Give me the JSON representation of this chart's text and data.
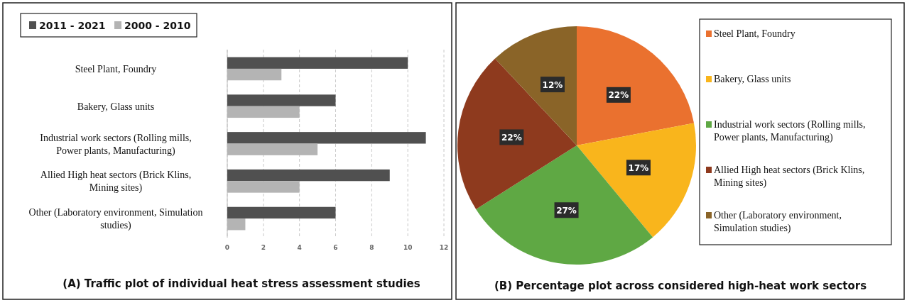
{
  "chart_data": [
    {
      "type": "bar",
      "orientation": "horizontal",
      "title": "(A) Traffic plot of individual heat stress assessment studies",
      "categories": [
        "Steel Plant, Foundry",
        "Bakery, Glass units",
        "Industrial work sectors (Rolling mills, Power plants, Manufacturing)",
        "Allied High heat sectors (Brick Klins, Mining sites)",
        "Other (Laboratory environment, Simulation studies)"
      ],
      "series": [
        {
          "name": "2011 - 2021",
          "color": "#505050",
          "values": [
            10,
            6,
            11,
            9,
            6
          ]
        },
        {
          "name": "2000 - 2010",
          "color": "#b4b4b4",
          "values": [
            3,
            4,
            5,
            4,
            1
          ]
        }
      ],
      "xlim": [
        0,
        12
      ],
      "xticks": [
        0,
        2,
        4,
        6,
        8,
        10,
        12
      ],
      "grid": "x",
      "legend": "top left"
    },
    {
      "type": "pie",
      "title": "(B) Percentage plot across considered high-heat work sectors",
      "categories": [
        "Steel Plant, Foundry",
        "Bakery, Glass units",
        "Industrial work sectors (Rolling mills, Power plants, Manufacturing)",
        "Allied High heat sectors (Brick Klins, Mining sites)",
        "Other (Laboratory environment, Simulation studies)"
      ],
      "values": [
        22,
        17,
        27,
        22,
        12
      ],
      "colors": [
        "#ea712f",
        "#f9b51c",
        "#5fa844",
        "#8e3a1e",
        "#8a6428"
      ],
      "value_labels": [
        "22%",
        "17%",
        "27%",
        "22%",
        "12%"
      ],
      "legend": "right"
    }
  ]
}
